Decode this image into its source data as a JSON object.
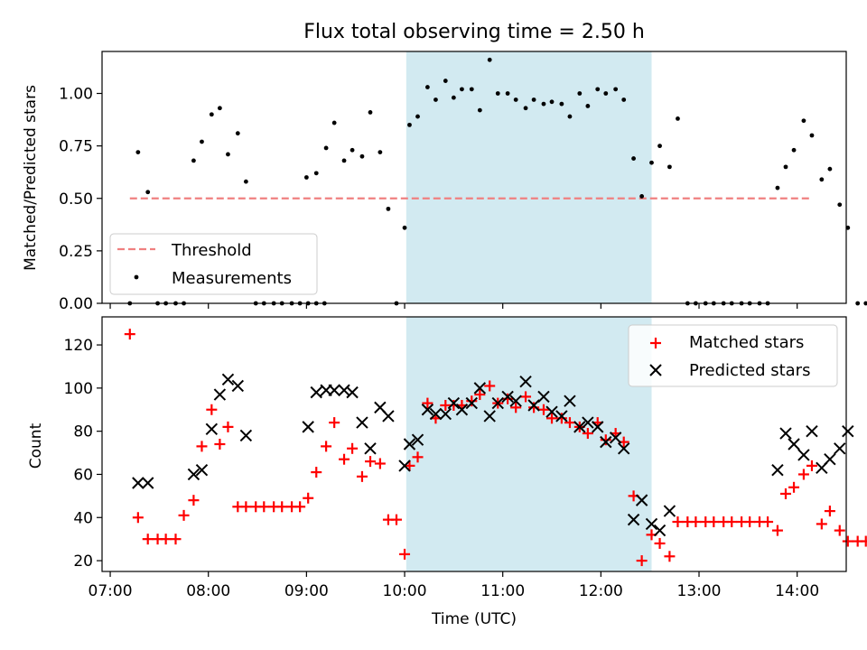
{
  "figure": {
    "title": "Flux total observing time = 2.50 h"
  },
  "chart_data": [
    {
      "type": "scatter",
      "ylabel": "Matched/Predicted stars",
      "xlabel": "",
      "ylim": [
        0,
        1.2
      ],
      "xlim": [
        "06:55",
        "14:30"
      ],
      "yticks": [
        "0.00",
        "0.25",
        "0.50",
        "0.75",
        "1.00"
      ],
      "yticks_values": [
        0,
        0.25,
        0.5,
        0.75,
        1.0
      ],
      "highlight_span": {
        "from": "10:01",
        "to": "12:31",
        "color": "#add8e6"
      },
      "legend": {
        "position": "lower-left",
        "entries": [
          "Threshold",
          "Measurements"
        ]
      },
      "threshold": {
        "name": "Threshold",
        "value": 0.5,
        "from": "07:12",
        "to": "14:09",
        "color": "#f08080",
        "style": "dashed"
      },
      "series": [
        {
          "name": "Measurements",
          "color": "#000000",
          "marker": "dot",
          "points": [
            [
              "07:12",
              0.0
            ],
            [
              "07:17",
              0.72
            ],
            [
              "07:23",
              0.53
            ],
            [
              "07:29",
              0.0
            ],
            [
              "07:34",
              0.0
            ],
            [
              "07:40",
              0.0
            ],
            [
              "07:45",
              0.0
            ],
            [
              "07:51",
              0.68
            ],
            [
              "07:56",
              0.77
            ],
            [
              "08:02",
              0.9
            ],
            [
              "08:07",
              0.93
            ],
            [
              "08:12",
              0.71
            ],
            [
              "08:18",
              0.81
            ],
            [
              "08:23",
              0.58
            ],
            [
              "08:29",
              0.0
            ],
            [
              "08:34",
              0.0
            ],
            [
              "08:40",
              0.0
            ],
            [
              "08:45",
              0.0
            ],
            [
              "08:51",
              0.0
            ],
            [
              "08:56",
              0.0
            ],
            [
              "09:01",
              0.0
            ],
            [
              "09:06",
              0.0
            ],
            [
              "09:11",
              0.0
            ],
            [
              "09:00",
              0.6
            ],
            [
              "09:06",
              0.62
            ],
            [
              "09:12",
              0.74
            ],
            [
              "09:17",
              0.86
            ],
            [
              "09:23",
              0.68
            ],
            [
              "09:28",
              0.73
            ],
            [
              "09:34",
              0.7
            ],
            [
              "09:39",
              0.91
            ],
            [
              "09:45",
              0.72
            ],
            [
              "09:50",
              0.45
            ],
            [
              "09:55",
              0.0
            ],
            [
              "10:00",
              0.36
            ],
            [
              "10:03",
              0.85
            ],
            [
              "10:08",
              0.89
            ],
            [
              "10:14",
              1.03
            ],
            [
              "10:19",
              0.97
            ],
            [
              "10:25",
              1.06
            ],
            [
              "10:30",
              0.98
            ],
            [
              "10:35",
              1.02
            ],
            [
              "10:41",
              1.02
            ],
            [
              "10:46",
              0.92
            ],
            [
              "10:52",
              1.16
            ],
            [
              "10:57",
              1.0
            ],
            [
              "11:03",
              1.0
            ],
            [
              "11:08",
              0.97
            ],
            [
              "11:14",
              0.93
            ],
            [
              "11:19",
              0.97
            ],
            [
              "11:25",
              0.95
            ],
            [
              "11:30",
              0.96
            ],
            [
              "11:36",
              0.95
            ],
            [
              "11:41",
              0.89
            ],
            [
              "11:47",
              1.0
            ],
            [
              "11:52",
              0.94
            ],
            [
              "11:58",
              1.02
            ],
            [
              "12:03",
              1.0
            ],
            [
              "12:09",
              1.02
            ],
            [
              "12:14",
              0.97
            ],
            [
              "12:20",
              0.69
            ],
            [
              "12:25",
              0.51
            ],
            [
              "12:31",
              0.67
            ],
            [
              "12:36",
              0.75
            ],
            [
              "12:42",
              0.65
            ],
            [
              "12:47",
              0.88
            ],
            [
              "12:53",
              0.0
            ],
            [
              "12:58",
              0.0
            ],
            [
              "13:04",
              0.0
            ],
            [
              "13:09",
              0.0
            ],
            [
              "13:15",
              0.0
            ],
            [
              "13:20",
              0.0
            ],
            [
              "13:26",
              0.0
            ],
            [
              "13:31",
              0.0
            ],
            [
              "13:37",
              0.0
            ],
            [
              "13:42",
              0.0
            ],
            [
              "13:48",
              0.55
            ],
            [
              "13:53",
              0.65
            ],
            [
              "13:58",
              0.73
            ],
            [
              "14:04",
              0.87
            ],
            [
              "14:09",
              0.8
            ],
            [
              "14:15",
              0.59
            ],
            [
              "14:20",
              0.64
            ],
            [
              "14:26",
              0.47
            ],
            [
              "14:31",
              0.36
            ],
            [
              "14:37",
              0.0
            ],
            [
              "14:42",
              0.0
            ]
          ]
        }
      ]
    },
    {
      "type": "scatter",
      "xlabel": "Time (UTC)",
      "ylabel": "Count",
      "ylim": [
        15,
        133
      ],
      "xlim": [
        "06:55",
        "14:30"
      ],
      "xticks": [
        "07:00",
        "08:00",
        "09:00",
        "10:00",
        "11:00",
        "12:00",
        "13:00",
        "14:00"
      ],
      "yticks": [
        "20",
        "40",
        "60",
        "80",
        "100",
        "120"
      ],
      "yticks_values": [
        20,
        40,
        60,
        80,
        100,
        120
      ],
      "highlight_span": {
        "from": "10:01",
        "to": "12:31",
        "color": "#add8e6"
      },
      "legend": {
        "position": "top-right",
        "entries": [
          "Matched stars",
          "Predicted stars"
        ]
      },
      "series": [
        {
          "name": "Matched stars",
          "color": "#ff0000",
          "marker": "plus",
          "points": [
            [
              "07:12",
              125
            ],
            [
              "07:17",
              40
            ],
            [
              "07:23",
              30
            ],
            [
              "07:29",
              30
            ],
            [
              "07:34",
              30
            ],
            [
              "07:40",
              30
            ],
            [
              "07:45",
              41
            ],
            [
              "07:51",
              48
            ],
            [
              "07:56",
              73
            ],
            [
              "08:02",
              90
            ],
            [
              "08:07",
              74
            ],
            [
              "08:12",
              82
            ],
            [
              "08:18",
              45
            ],
            [
              "08:23",
              45
            ],
            [
              "08:29",
              45
            ],
            [
              "08:34",
              45
            ],
            [
              "08:40",
              45
            ],
            [
              "08:45",
              45
            ],
            [
              "08:51",
              45
            ],
            [
              "08:56",
              45
            ],
            [
              "09:01",
              49
            ],
            [
              "09:06",
              61
            ],
            [
              "09:12",
              73
            ],
            [
              "09:17",
              84
            ],
            [
              "09:23",
              67
            ],
            [
              "09:28",
              72
            ],
            [
              "09:34",
              59
            ],
            [
              "09:39",
              66
            ],
            [
              "09:45",
              65
            ],
            [
              "09:50",
              39
            ],
            [
              "09:55",
              39
            ],
            [
              "10:00",
              23
            ],
            [
              "10:03",
              64
            ],
            [
              "10:08",
              68
            ],
            [
              "10:14",
              93
            ],
            [
              "10:19",
              86
            ],
            [
              "10:25",
              92
            ],
            [
              "10:30",
              92
            ],
            [
              "10:35",
              92
            ],
            [
              "10:41",
              94
            ],
            [
              "10:46",
              97
            ],
            [
              "10:52",
              101
            ],
            [
              "10:57",
              93
            ],
            [
              "11:03",
              95
            ],
            [
              "11:08",
              91
            ],
            [
              "11:14",
              96
            ],
            [
              "11:19",
              91
            ],
            [
              "11:25",
              90
            ],
            [
              "11:30",
              86
            ],
            [
              "11:36",
              86
            ],
            [
              "11:41",
              84
            ],
            [
              "11:47",
              82
            ],
            [
              "11:52",
              79
            ],
            [
              "11:58",
              84
            ],
            [
              "12:03",
              76
            ],
            [
              "12:09",
              79
            ],
            [
              "12:14",
              75
            ],
            [
              "12:20",
              50
            ],
            [
              "12:25",
              20
            ],
            [
              "12:31",
              32
            ],
            [
              "12:36",
              28
            ],
            [
              "12:42",
              22
            ],
            [
              "12:47",
              38
            ],
            [
              "12:53",
              38
            ],
            [
              "12:58",
              38
            ],
            [
              "13:04",
              38
            ],
            [
              "13:09",
              38
            ],
            [
              "13:15",
              38
            ],
            [
              "13:20",
              38
            ],
            [
              "13:26",
              38
            ],
            [
              "13:31",
              38
            ],
            [
              "13:37",
              38
            ],
            [
              "13:42",
              38
            ],
            [
              "13:48",
              34
            ],
            [
              "13:53",
              51
            ],
            [
              "13:58",
              54
            ],
            [
              "14:04",
              60
            ],
            [
              "14:09",
              64
            ],
            [
              "14:15",
              37
            ],
            [
              "14:20",
              43
            ],
            [
              "14:26",
              34
            ],
            [
              "14:31",
              29
            ],
            [
              "14:37",
              29
            ],
            [
              "14:42",
              29
            ]
          ]
        },
        {
          "name": "Predicted stars",
          "color": "#000000",
          "marker": "x",
          "points": [
            [
              "07:17",
              56
            ],
            [
              "07:23",
              56
            ],
            [
              "07:51",
              60
            ],
            [
              "07:56",
              62
            ],
            [
              "08:02",
              81
            ],
            [
              "08:07",
              97
            ],
            [
              "08:12",
              104
            ],
            [
              "08:18",
              101
            ],
            [
              "08:23",
              78
            ],
            [
              "09:01",
              82
            ],
            [
              "09:06",
              98
            ],
            [
              "09:12",
              99
            ],
            [
              "09:17",
              99
            ],
            [
              "09:23",
              99
            ],
            [
              "09:28",
              98
            ],
            [
              "09:34",
              84
            ],
            [
              "09:39",
              72
            ],
            [
              "09:45",
              91
            ],
            [
              "09:50",
              87
            ],
            [
              "10:00",
              64
            ],
            [
              "10:03",
              74
            ],
            [
              "10:08",
              76
            ],
            [
              "10:14",
              90
            ],
            [
              "10:19",
              88
            ],
            [
              "10:25",
              88
            ],
            [
              "10:30",
              93
            ],
            [
              "10:35",
              90
            ],
            [
              "10:41",
              93
            ],
            [
              "10:46",
              100
            ],
            [
              "10:52",
              87
            ],
            [
              "10:57",
              93
            ],
            [
              "11:03",
              96
            ],
            [
              "11:08",
              94
            ],
            [
              "11:14",
              103
            ],
            [
              "11:19",
              92
            ],
            [
              "11:25",
              96
            ],
            [
              "11:30",
              89
            ],
            [
              "11:36",
              87
            ],
            [
              "11:41",
              94
            ],
            [
              "11:47",
              82
            ],
            [
              "11:52",
              84
            ],
            [
              "11:58",
              82
            ],
            [
              "12:03",
              75
            ],
            [
              "12:09",
              77
            ],
            [
              "12:14",
              72
            ],
            [
              "12:20",
              39
            ],
            [
              "12:25",
              48
            ],
            [
              "12:31",
              37
            ],
            [
              "12:36",
              34
            ],
            [
              "12:42",
              43
            ],
            [
              "13:48",
              62
            ],
            [
              "13:53",
              79
            ],
            [
              "13:58",
              74
            ],
            [
              "14:04",
              69
            ],
            [
              "14:09",
              80
            ],
            [
              "14:15",
              63
            ],
            [
              "14:20",
              67
            ],
            [
              "14:26",
              72
            ],
            [
              "14:31",
              80
            ]
          ]
        }
      ]
    }
  ]
}
